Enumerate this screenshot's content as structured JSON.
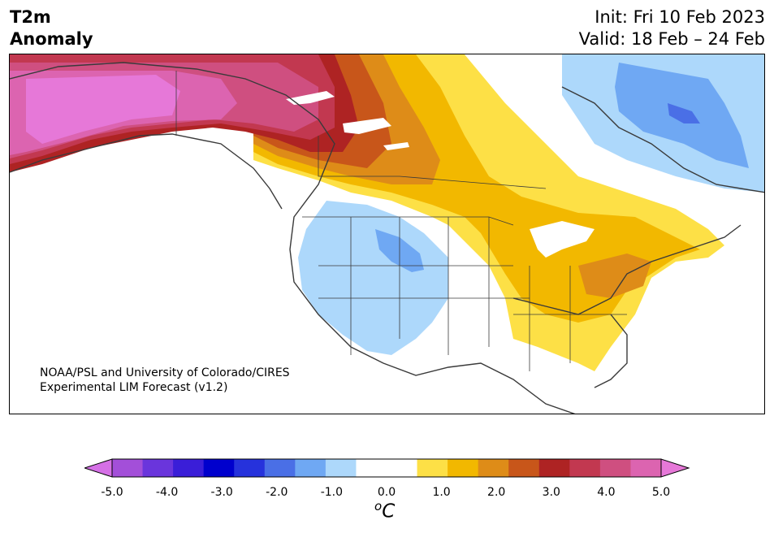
{
  "header": {
    "title_line1": "T2m",
    "title_line2": "Anomaly",
    "init": "Init: Fri 10 Feb 2023",
    "valid": "Valid: 18 Feb – 24 Feb"
  },
  "map": {
    "credit_line1": "NOAA/PSL and University of Colorado/CIRES",
    "credit_line2": "Experimental LIM Forecast (v1.2)"
  },
  "colorbar": {
    "colors": [
      "#d570e6",
      "#a34fd9",
      "#6a35dc",
      "#3a1ed8",
      "#0000cd",
      "#2632dc",
      "#4a6fe6",
      "#6fa8f3",
      "#add8fb",
      "#ffffff",
      "#ffffff",
      "#fde046",
      "#f2b800",
      "#de8c18",
      "#c8561a",
      "#ae2323",
      "#c23850",
      "#cf4f80",
      "#dc64b0",
      "#e678d8"
    ],
    "ticks": [
      "-5.0",
      "-4.0",
      "-3.0",
      "-2.0",
      "-1.0",
      "0.0",
      "1.0",
      "2.0",
      "3.0",
      "4.0",
      "5.0"
    ],
    "unit_base": "C",
    "unit_sup": "o"
  }
}
